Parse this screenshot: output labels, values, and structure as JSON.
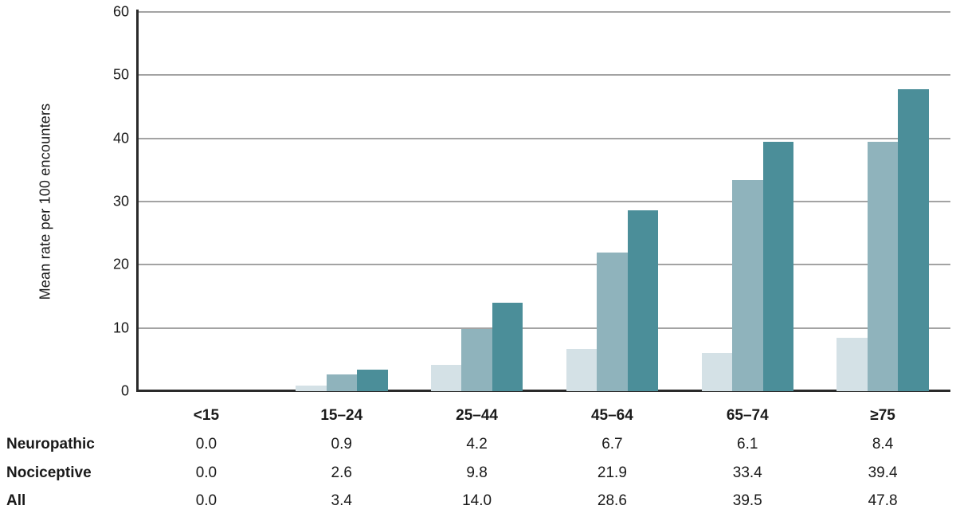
{
  "chart_data": {
    "type": "bar",
    "title": "",
    "categories": [
      "<15",
      "15–24",
      "25–44",
      "45–64",
      "65–74",
      "≥75"
    ],
    "series": [
      {
        "name": "Neuropathic",
        "color": "#d4e1e6",
        "values": [
          0.0,
          0.9,
          4.2,
          6.7,
          6.1,
          8.4
        ]
      },
      {
        "name": "Nociceptive",
        "color": "#8fb3bc",
        "values": [
          0.0,
          2.6,
          9.8,
          21.9,
          33.4,
          39.4
        ]
      },
      {
        "name": "All",
        "color": "#4b8e99",
        "values": [
          0.0,
          3.4,
          14.0,
          28.6,
          39.5,
          47.8
        ]
      }
    ],
    "xlabel": "",
    "ylabel": "Mean rate per 100 encounters",
    "ylim": [
      0,
      60
    ],
    "yticks": [
      0,
      10,
      20,
      30,
      40,
      50,
      60
    ],
    "grid": true,
    "legend_position": "table-below"
  },
  "table": {
    "columns": [
      "<15",
      "15–24",
      "25–44",
      "45–64",
      "65–74",
      "≥75"
    ],
    "rows": [
      {
        "label": "Neuropathic",
        "values": [
          "0.0",
          "0.9",
          "4.2",
          "6.7",
          "6.1",
          "8.4"
        ]
      },
      {
        "label": "Nociceptive",
        "values": [
          "0.0",
          "2.6",
          "9.8",
          "21.9",
          "33.4",
          "39.4"
        ]
      },
      {
        "label": "All",
        "values": [
          "0.0",
          "3.4",
          "14.0",
          "28.6",
          "39.5",
          "47.8"
        ]
      }
    ]
  },
  "colors": {
    "axis": "#2a2a2a",
    "gridline": "#a3a3a3",
    "text": "#1a1a1a"
  }
}
